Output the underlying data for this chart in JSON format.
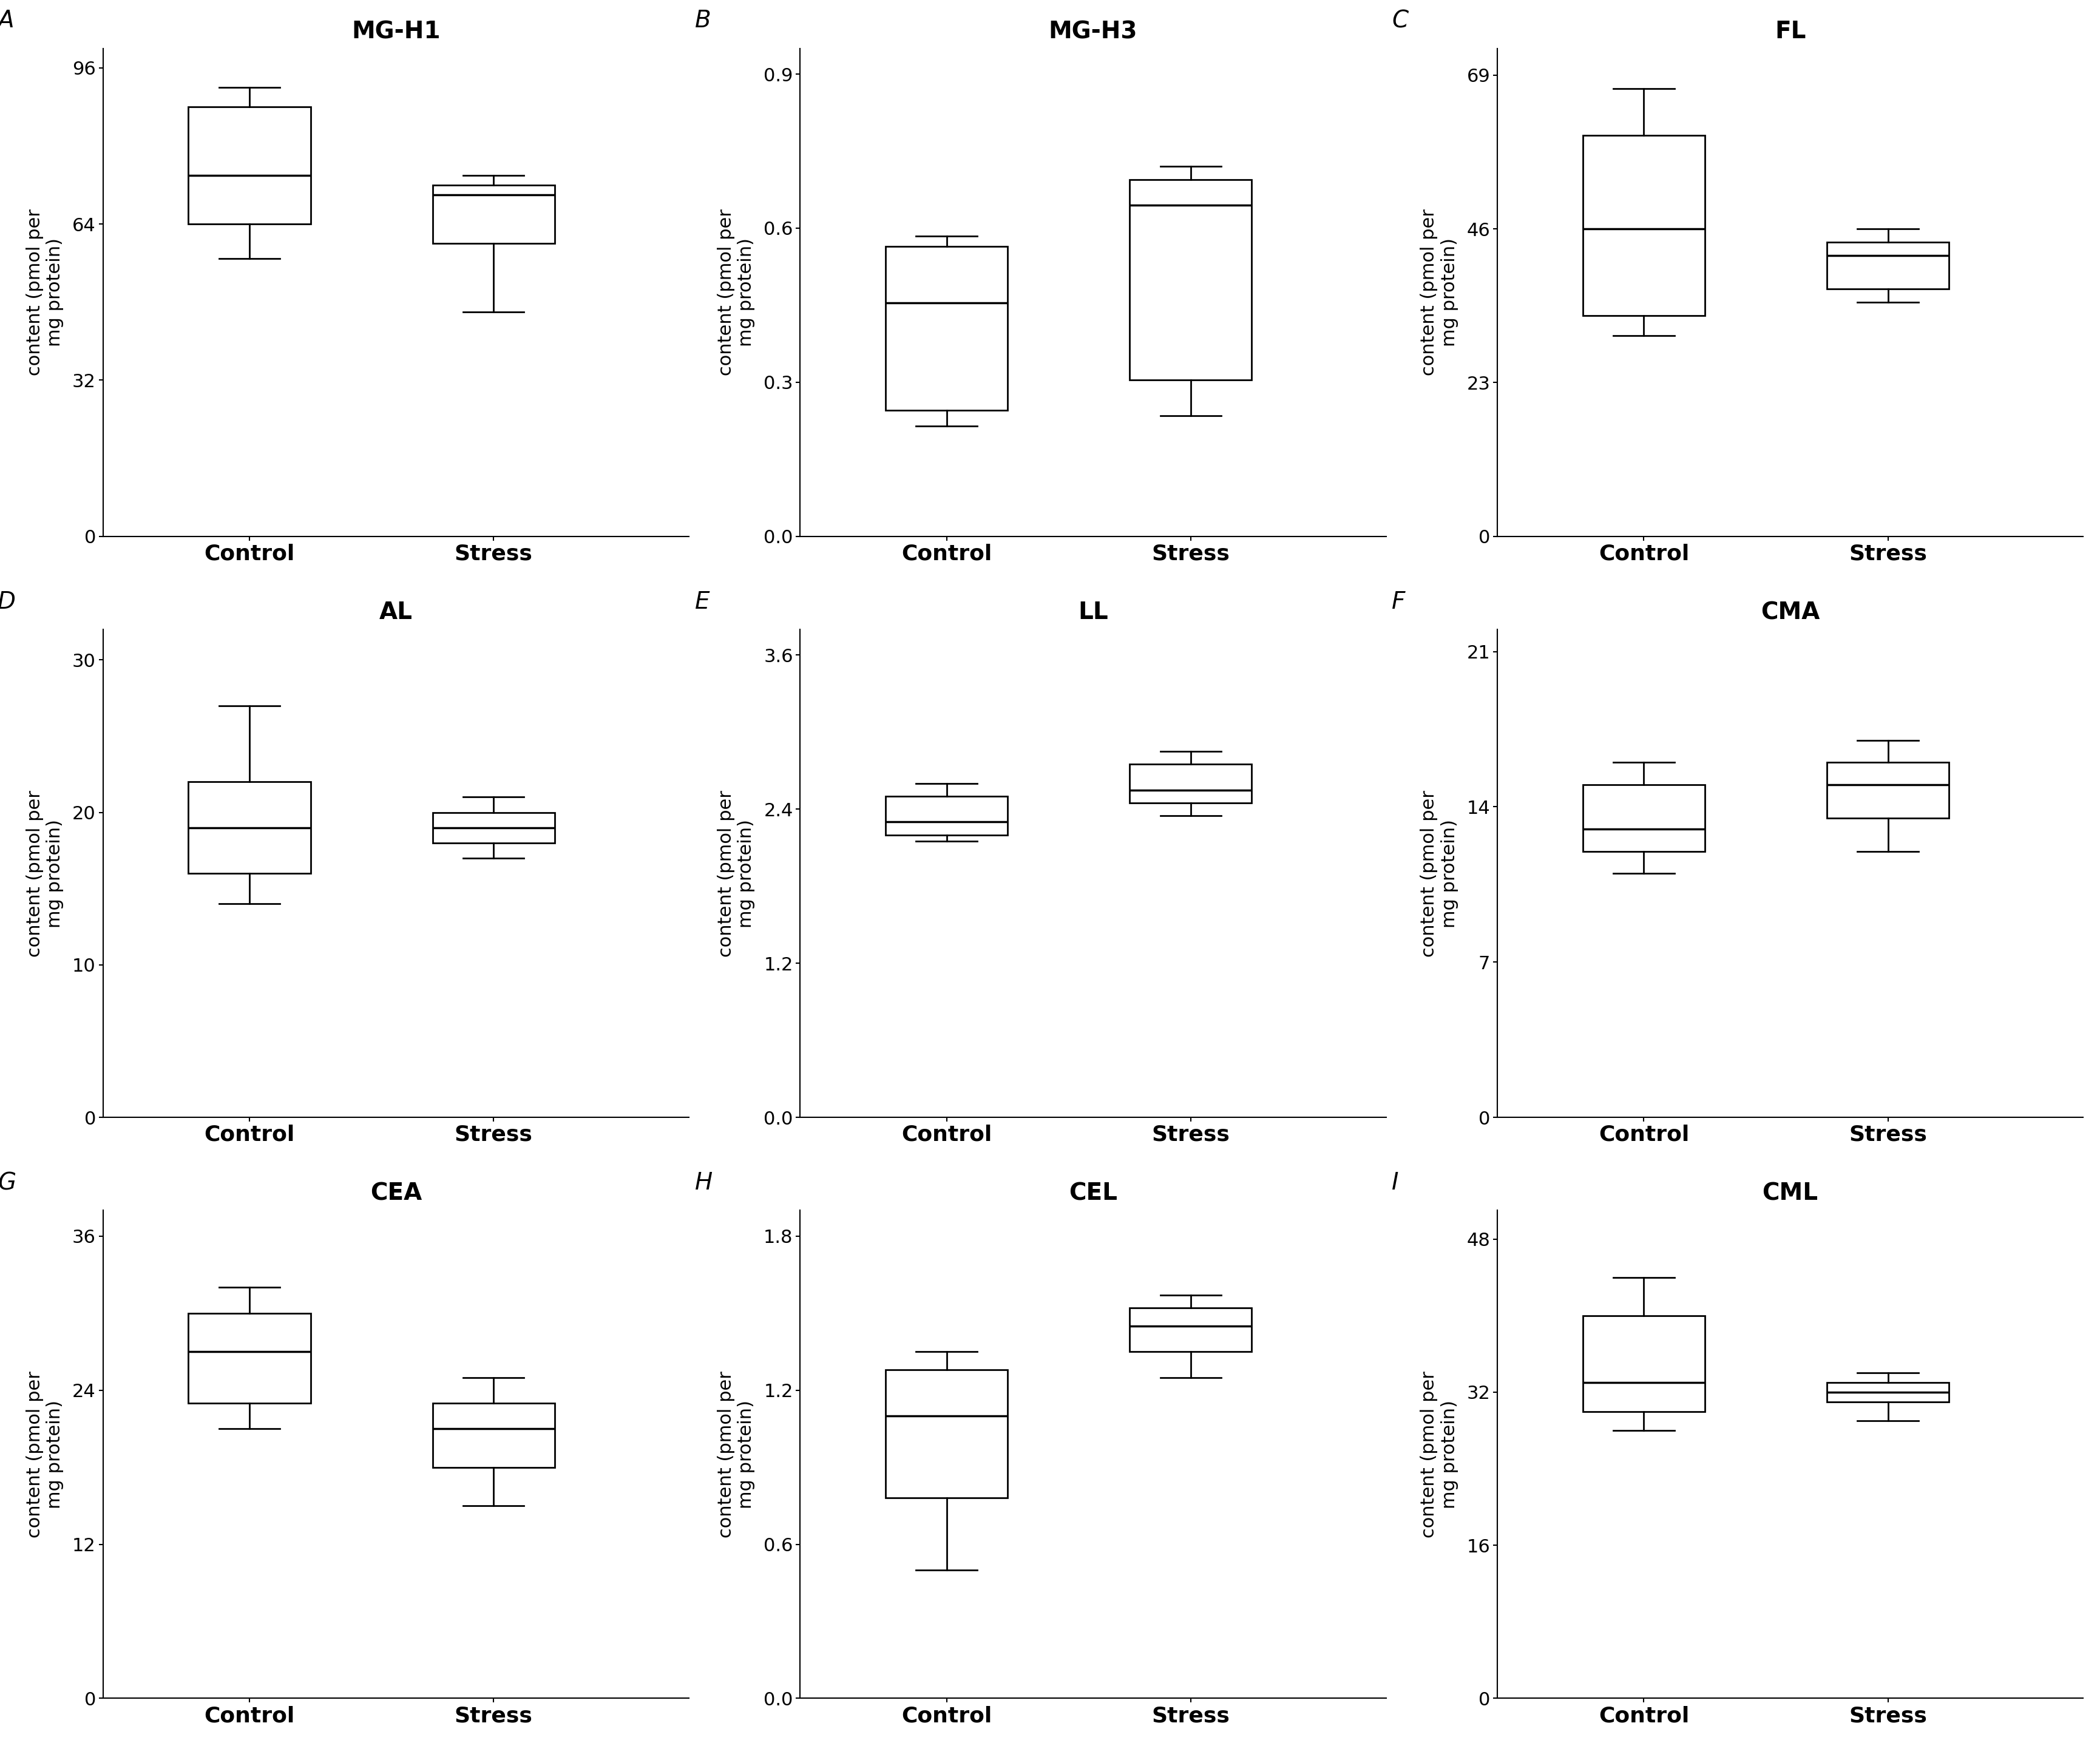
{
  "panels": [
    {
      "label": "A",
      "title": "MG-H1",
      "yticks": [
        0,
        32,
        64,
        96
      ],
      "ylim": [
        0,
        100
      ],
      "control": {
        "whislo": 57,
        "q1": 64,
        "med": 74,
        "q3": 88,
        "whishi": 92
      },
      "stress": {
        "whislo": 46,
        "q1": 60,
        "med": 70,
        "q3": 72,
        "whishi": 74
      }
    },
    {
      "label": "B",
      "title": "MG-H3",
      "yticks": [
        0,
        0.3,
        0.6,
        0.9
      ],
      "ylim": [
        0,
        0.95
      ],
      "control": {
        "whislo": 0.215,
        "q1": 0.245,
        "med": 0.455,
        "q3": 0.565,
        "whishi": 0.585
      },
      "stress": {
        "whislo": 0.235,
        "q1": 0.305,
        "med": 0.645,
        "q3": 0.695,
        "whishi": 0.72
      }
    },
    {
      "label": "C",
      "title": "FL",
      "yticks": [
        0,
        23,
        46,
        69
      ],
      "ylim": [
        0,
        73
      ],
      "control": {
        "whislo": 30,
        "q1": 33,
        "med": 46,
        "q3": 60,
        "whishi": 67
      },
      "stress": {
        "whislo": 35,
        "q1": 37,
        "med": 42,
        "q3": 44,
        "whishi": 46
      }
    },
    {
      "label": "D",
      "title": "AL",
      "yticks": [
        0,
        10,
        20,
        30
      ],
      "ylim": [
        0,
        32
      ],
      "control": {
        "whislo": 14,
        "q1": 16,
        "med": 19,
        "q3": 22,
        "whishi": 27
      },
      "stress": {
        "whislo": 17,
        "q1": 18,
        "med": 19,
        "q3": 20,
        "whishi": 21
      }
    },
    {
      "label": "E",
      "title": "LL",
      "yticks": [
        0,
        1.2,
        2.4,
        3.6
      ],
      "ylim": [
        0,
        3.8
      ],
      "control": {
        "whislo": 2.15,
        "q1": 2.2,
        "med": 2.3,
        "q3": 2.5,
        "whishi": 2.6
      },
      "stress": {
        "whislo": 2.35,
        "q1": 2.45,
        "med": 2.55,
        "q3": 2.75,
        "whishi": 2.85
      }
    },
    {
      "label": "F",
      "title": "CMA",
      "yticks": [
        0,
        7,
        14,
        21
      ],
      "ylim": [
        0,
        22
      ],
      "control": {
        "whislo": 11,
        "q1": 12,
        "med": 13,
        "q3": 15,
        "whishi": 16
      },
      "stress": {
        "whislo": 12,
        "q1": 13.5,
        "med": 15,
        "q3": 16,
        "whishi": 17
      }
    },
    {
      "label": "G",
      "title": "CEA",
      "yticks": [
        0,
        12,
        24,
        36
      ],
      "ylim": [
        0,
        38
      ],
      "control": {
        "whislo": 21,
        "q1": 23,
        "med": 27,
        "q3": 30,
        "whishi": 32
      },
      "stress": {
        "whislo": 15,
        "q1": 18,
        "med": 21,
        "q3": 23,
        "whishi": 25
      }
    },
    {
      "label": "H",
      "title": "CEL",
      "yticks": [
        0,
        0.6,
        1.2,
        1.8
      ],
      "ylim": [
        0,
        1.9
      ],
      "control": {
        "whislo": 0.5,
        "q1": 0.78,
        "med": 1.1,
        "q3": 1.28,
        "whishi": 1.35
      },
      "stress": {
        "whislo": 1.25,
        "q1": 1.35,
        "med": 1.45,
        "q3": 1.52,
        "whishi": 1.57
      }
    },
    {
      "label": "I",
      "title": "CML",
      "yticks": [
        0,
        16,
        32,
        48
      ],
      "ylim": [
        0,
        51
      ],
      "control": {
        "whislo": 28,
        "q1": 30,
        "med": 33,
        "q3": 40,
        "whishi": 44
      },
      "stress": {
        "whislo": 29,
        "q1": 31,
        "med": 32,
        "q3": 33,
        "whishi": 34
      }
    }
  ],
  "ylabel": "content (pmol per\nmg protein)",
  "xlabel_control": "Control",
  "xlabel_stress": "Stress",
  "box_color": "white",
  "box_edgecolor": "black",
  "median_color": "black",
  "whisker_color": "black",
  "cap_color": "black",
  "background_color": "white",
  "label_fontsize": 28,
  "title_fontsize": 28,
  "tick_fontsize": 22,
  "ylabel_fontsize": 22,
  "xlabel_fontsize": 26
}
